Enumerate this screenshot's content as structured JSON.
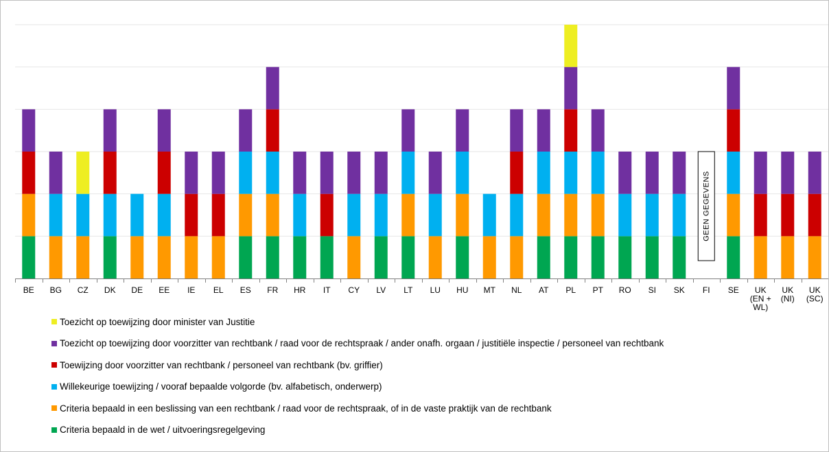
{
  "chart_data": {
    "type": "bar",
    "stacked": true,
    "title": "",
    "xlabel": "",
    "ylabel": "",
    "ylim": [
      0,
      6
    ],
    "y_tick_labels_shown": false,
    "grid": true,
    "legend_position": "bottom",
    "categories": [
      {
        "id": "BE",
        "lines": [
          "BE"
        ]
      },
      {
        "id": "BG",
        "lines": [
          "BG"
        ]
      },
      {
        "id": "CZ",
        "lines": [
          "CZ"
        ]
      },
      {
        "id": "DK",
        "lines": [
          "DK"
        ]
      },
      {
        "id": "DE",
        "lines": [
          "DE"
        ]
      },
      {
        "id": "EE",
        "lines": [
          "EE"
        ]
      },
      {
        "id": "IE",
        "lines": [
          "IE"
        ]
      },
      {
        "id": "EL",
        "lines": [
          "EL"
        ]
      },
      {
        "id": "ES",
        "lines": [
          "ES"
        ]
      },
      {
        "id": "FR",
        "lines": [
          "FR"
        ]
      },
      {
        "id": "HR",
        "lines": [
          "HR"
        ]
      },
      {
        "id": "IT",
        "lines": [
          "IT"
        ]
      },
      {
        "id": "CY",
        "lines": [
          "CY"
        ]
      },
      {
        "id": "LV",
        "lines": [
          "LV"
        ]
      },
      {
        "id": "LT",
        "lines": [
          "LT"
        ]
      },
      {
        "id": "LU",
        "lines": [
          "LU"
        ]
      },
      {
        "id": "HU",
        "lines": [
          "HU"
        ]
      },
      {
        "id": "MT",
        "lines": [
          "MT"
        ]
      },
      {
        "id": "NL",
        "lines": [
          "NL"
        ]
      },
      {
        "id": "AT",
        "lines": [
          "AT"
        ]
      },
      {
        "id": "PL",
        "lines": [
          "PL"
        ]
      },
      {
        "id": "PT",
        "lines": [
          "PT"
        ]
      },
      {
        "id": "RO",
        "lines": [
          "RO"
        ]
      },
      {
        "id": "SI",
        "lines": [
          "SI"
        ]
      },
      {
        "id": "SK",
        "lines": [
          "SK"
        ]
      },
      {
        "id": "FI",
        "lines": [
          "FI"
        ]
      },
      {
        "id": "SE",
        "lines": [
          "SE"
        ]
      },
      {
        "id": "UK-EN-WL",
        "lines": [
          "UK",
          "(EN +",
          "WL)"
        ]
      },
      {
        "id": "UK-NI",
        "lines": [
          "UK",
          "(NI)"
        ]
      },
      {
        "id": "UK-SC",
        "lines": [
          "UK",
          "(SC)"
        ]
      }
    ],
    "series": [
      {
        "key": "law",
        "name": "Criteria bepaald in de wet / uitvoeringsregelgeving",
        "color": "#00a651",
        "values": [
          1,
          0,
          0,
          1,
          0,
          0,
          0,
          0,
          1,
          1,
          1,
          1,
          0,
          1,
          1,
          0,
          1,
          0,
          0,
          1,
          1,
          1,
          1,
          1,
          1,
          0,
          1,
          0,
          0,
          0
        ]
      },
      {
        "key": "court_decision",
        "name": "Criteria bepaald in een beslissing van een rechtbank / raad voor de rechtspraak, of in de vaste praktijk van de rechtbank",
        "color": "#ff9900",
        "values": [
          1,
          1,
          1,
          0,
          1,
          1,
          1,
          1,
          1,
          1,
          0,
          0,
          1,
          0,
          1,
          1,
          1,
          1,
          1,
          1,
          1,
          1,
          0,
          0,
          0,
          0,
          1,
          1,
          1,
          1
        ]
      },
      {
        "key": "random",
        "name": "Willekeurige toewijzing / vooraf bepaalde volgorde (bv. alfabetisch, onderwerp)",
        "color": "#00b0f0",
        "values": [
          0,
          1,
          1,
          1,
          1,
          1,
          0,
          0,
          1,
          1,
          1,
          0,
          1,
          1,
          1,
          1,
          1,
          1,
          1,
          1,
          1,
          1,
          1,
          1,
          1,
          0,
          1,
          0,
          0,
          0
        ]
      },
      {
        "key": "president",
        "name": "Toewijzing door voorzitter van rechtbank / personeel van rechtbank (bv. griffier)",
        "color": "#cc0000",
        "values": [
          1,
          0,
          0,
          1,
          0,
          1,
          1,
          1,
          0,
          1,
          0,
          1,
          0,
          0,
          0,
          0,
          0,
          0,
          1,
          0,
          1,
          0,
          0,
          0,
          0,
          0,
          1,
          1,
          1,
          1
        ]
      },
      {
        "key": "supervision_court",
        "name": "Toezicht op toewijzing door voorzitter van rechtbank / raad voor de rechtspraak / ander onafh. orgaan / justitiële inspectie / personeel van rechtbank",
        "color": "#7030a0",
        "values": [
          1,
          1,
          0,
          1,
          0,
          1,
          1,
          1,
          1,
          1,
          1,
          1,
          1,
          1,
          1,
          1,
          1,
          0,
          1,
          1,
          1,
          1,
          1,
          1,
          1,
          0,
          1,
          1,
          1,
          1
        ]
      },
      {
        "key": "supervision_minister",
        "name": "Toezicht op toewijzing door minister van Justitie",
        "color": "#eeee22",
        "values": [
          0,
          0,
          1,
          0,
          0,
          0,
          0,
          0,
          0,
          0,
          0,
          0,
          0,
          0,
          0,
          0,
          0,
          0,
          0,
          0,
          1,
          0,
          0,
          0,
          0,
          0,
          0,
          0,
          0,
          0
        ]
      }
    ],
    "no_data": {
      "category": "FI",
      "label": "GEEN GEGEVENS"
    },
    "legend_order": [
      "supervision_minister",
      "supervision_court",
      "president",
      "random",
      "court_decision",
      "law"
    ]
  }
}
